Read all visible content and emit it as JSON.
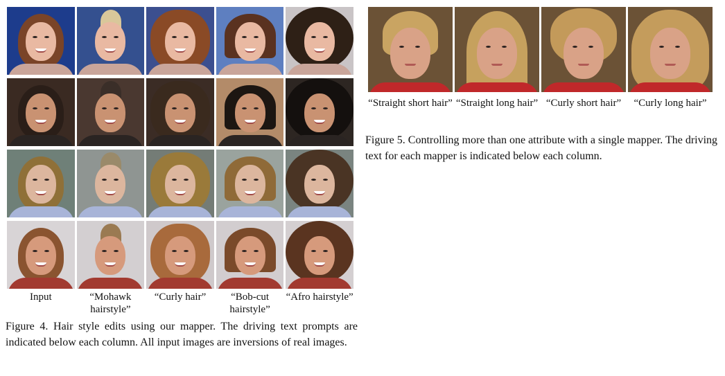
{
  "figure4": {
    "columns": [
      "Input",
      "“Mohawk hairstyle”",
      "“Curly hair”",
      "“Bob-cut hairstyle”",
      "“Afro hairstyle”"
    ],
    "caption": "Figure 4. Hair style edits using our mapper.  The driving text prompts are indicated below each column.  All input images are inversions of real images.",
    "rows": [
      {
        "subject": "woman-1",
        "skin": "#e9b9a2",
        "bg": [
          "#1d3c8c",
          "#34508f",
          "#3c4f8f",
          "#5e7fc0",
          "#c9c4c6"
        ]
      },
      {
        "subject": "man-1",
        "skin": "#c99272",
        "bg": [
          "#3a2a22",
          "#4a3830",
          "#3b2c25",
          "#b38b69",
          "#2d2622"
        ]
      },
      {
        "subject": "woman-2",
        "skin": "#dcb69e",
        "bg": [
          "#6f8078",
          "#8f9592",
          "#747c76",
          "#9aa39e",
          "#7a8480"
        ]
      },
      {
        "subject": "man-2",
        "skin": "#d69a7c",
        "bg": [
          "#d8d4d6",
          "#d3cfd1",
          "#cfc9cb",
          "#d2cdcf",
          "#d4cfd1"
        ]
      }
    ],
    "hair_colors": {
      "woman-1": [
        "#7a4428",
        "#d9c79a",
        "#8a4a26",
        "#5a3220",
        "#2e2016"
      ],
      "man-1": [
        "#2a1e18",
        "#3a2e28",
        "#3a2a1e",
        "#1c1612",
        "#14100e"
      ],
      "woman-2": [
        "#8f7038",
        "#9a8a6a",
        "#9a7a3a",
        "#8f6a38",
        "#4a3424"
      ],
      "man-2": [
        "#8a5430",
        "#9a7a52",
        "#a86a3c",
        "#7a4a2a",
        "#5a3420"
      ]
    }
  },
  "figure5": {
    "columns": [
      "“Straight short hair”",
      "“Straight long hair”",
      "“Curly short hair”",
      "“Curly long hair”"
    ],
    "caption": "Figure 5. Controlling more than one attribute with a single mapper. The driving text for each mapper is indicated below each column.",
    "skin": "#d9a287",
    "hair": [
      "#c9a462",
      "#c6a15e",
      "#c39a5a",
      "#c49c5c"
    ]
  }
}
